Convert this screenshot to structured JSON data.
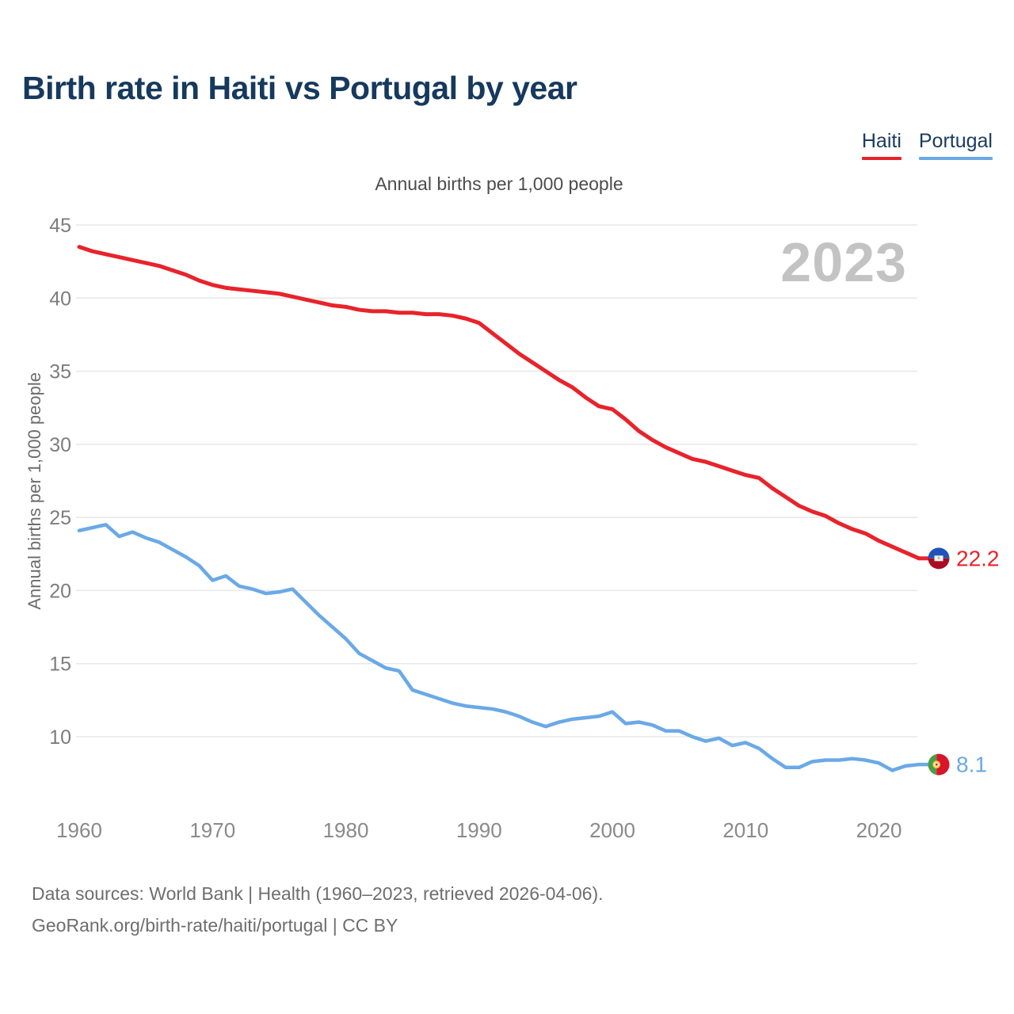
{
  "header": {
    "title": "Birth rate in Haiti vs Portugal by year"
  },
  "legend": {
    "items": [
      {
        "label": "Haiti",
        "color": "#e8232b"
      },
      {
        "label": "Portugal",
        "color": "#6aa9e6"
      }
    ]
  },
  "subtitle": "Annual births per 1,000 people",
  "watermark": "2023",
  "end_labels": {
    "haiti": "22.2",
    "portugal": "8.1"
  },
  "footer": {
    "line1": "Data sources: World Bank | Health (1960–2023, retrieved 2026-04-06).",
    "line2": "GeoRank.org/birth-rate/haiti/portugal | CC BY"
  },
  "colors": {
    "haiti_line": "#e8232b",
    "portugal_line": "#6aa9e6",
    "title_text": "#16395d",
    "axis_text": "#828282",
    "gridline": "#e8e8e8",
    "watermark_text": "#c3c3c3",
    "haiti_flag": {
      "blue": "#1f53b8",
      "red": "#ab0d23",
      "panel": "#f5f5f5"
    },
    "portugal_flag": {
      "green": "#4c9e45",
      "red": "#d8152a",
      "yellow": "#ffd24a"
    }
  },
  "chart_data": {
    "type": "line",
    "title": "Birth rate in Haiti vs Portugal by year",
    "subtitle": "Annual births per 1,000 people",
    "ylabel": "Annual births per 1,000 people",
    "xlabel": "",
    "grid": "horizontal",
    "legend_position": "top-right",
    "xlim": [
      1960,
      2023
    ],
    "ylim": [
      6.5,
      46
    ],
    "yticks": [
      45,
      40,
      35,
      30,
      25,
      20,
      15,
      10
    ],
    "xticks": [
      1960,
      1970,
      1980,
      1990,
      2000,
      2010,
      2020
    ],
    "years": [
      1960,
      1961,
      1962,
      1963,
      1964,
      1965,
      1966,
      1967,
      1968,
      1969,
      1970,
      1971,
      1972,
      1973,
      1974,
      1975,
      1976,
      1977,
      1978,
      1979,
      1980,
      1981,
      1982,
      1983,
      1984,
      1985,
      1986,
      1987,
      1988,
      1989,
      1990,
      1991,
      1992,
      1993,
      1994,
      1995,
      1996,
      1997,
      1998,
      1999,
      2000,
      2001,
      2002,
      2003,
      2004,
      2005,
      2006,
      2007,
      2008,
      2009,
      2010,
      2011,
      2012,
      2013,
      2014,
      2015,
      2016,
      2017,
      2018,
      2019,
      2020,
      2021,
      2022,
      2023
    ],
    "series": [
      {
        "name": "Haiti",
        "color": "#e8232b",
        "end_label": "22.2",
        "final_value": 22.2,
        "values": [
          43.5,
          43.2,
          43.0,
          42.8,
          42.6,
          42.4,
          42.2,
          41.9,
          41.6,
          41.2,
          40.9,
          40.7,
          40.6,
          40.5,
          40.4,
          40.3,
          40.1,
          39.9,
          39.7,
          39.5,
          39.4,
          39.2,
          39.1,
          39.1,
          39.0,
          39.0,
          38.9,
          38.9,
          38.8,
          38.6,
          38.3,
          37.6,
          36.9,
          36.2,
          35.6,
          35.0,
          34.4,
          33.9,
          33.2,
          32.6,
          32.4,
          31.7,
          30.9,
          30.3,
          29.8,
          29.4,
          29.0,
          28.8,
          28.5,
          28.2,
          27.9,
          27.7,
          27.0,
          26.4,
          25.8,
          25.4,
          25.1,
          24.6,
          24.2,
          23.9,
          23.4,
          23.0,
          22.6,
          22.2
        ]
      },
      {
        "name": "Portugal",
        "color": "#6aa9e6",
        "end_label": "8.1",
        "final_value": 8.1,
        "values": [
          24.1,
          24.3,
          24.5,
          23.7,
          24.0,
          23.6,
          23.3,
          22.8,
          22.3,
          21.7,
          20.7,
          21.0,
          20.3,
          20.1,
          19.8,
          19.9,
          20.1,
          19.2,
          18.3,
          17.5,
          16.7,
          15.7,
          15.2,
          14.7,
          14.5,
          13.2,
          12.9,
          12.6,
          12.3,
          12.1,
          12.0,
          11.9,
          11.7,
          11.4,
          11.0,
          10.7,
          11.0,
          11.2,
          11.3,
          11.4,
          11.7,
          10.9,
          11.0,
          10.8,
          10.4,
          10.4,
          10.0,
          9.7,
          9.9,
          9.4,
          9.6,
          9.2,
          8.5,
          7.9,
          7.9,
          8.3,
          8.4,
          8.4,
          8.5,
          8.4,
          8.2,
          7.7,
          8.0,
          8.1
        ]
      }
    ]
  }
}
